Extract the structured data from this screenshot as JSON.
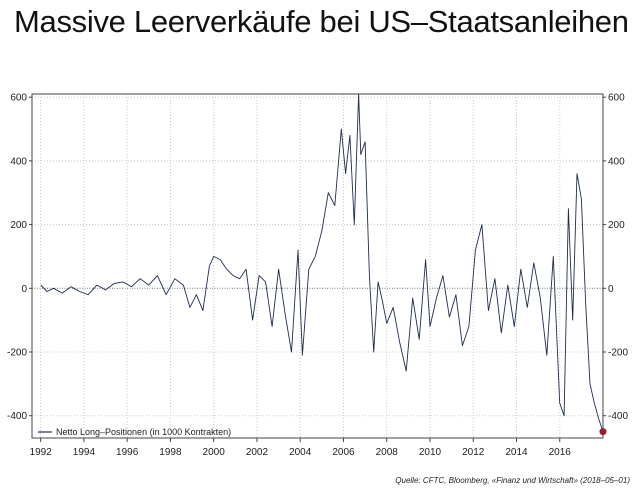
{
  "title": "Massive Leerverkäufe bei US–Staatsanleihen",
  "source": "Quelle: CFTC, Bloomberg, «Finanz und Wirtschaft» (2018–05–01)",
  "colors": {
    "series": "#1f2d4f",
    "endpoint": "#9b1c2c",
    "grid": "#c8c8c8",
    "axis": "#444444"
  },
  "chart_data": {
    "type": "line",
    "title": "Massive Leerverkäufe bei US–Staatsanleihen",
    "xlabel": "",
    "ylabel": "",
    "xlim": [
      1991.6,
      2018.0
    ],
    "ylim": [
      -470,
      610
    ],
    "xticks": [
      1992,
      1994,
      1996,
      1998,
      2000,
      2002,
      2004,
      2006,
      2008,
      2010,
      2012,
      2014,
      2016
    ],
    "yticks": [
      -400,
      -200,
      0,
      200,
      400,
      600
    ],
    "grid": true,
    "zero_line": true,
    "legend_position": "bottom-left",
    "series": [
      {
        "name": "Netto Long–Positionen (in 1000 Kontrakten)",
        "x": [
          1992.0,
          1992.3,
          1992.6,
          1993.0,
          1993.4,
          1993.8,
          1994.2,
          1994.6,
          1995.0,
          1995.4,
          1995.8,
          1996.2,
          1996.6,
          1997.0,
          1997.4,
          1997.8,
          1998.2,
          1998.6,
          1998.9,
          1999.2,
          1999.5,
          1999.8,
          2000.0,
          2000.3,
          2000.6,
          2000.9,
          2001.2,
          2001.5,
          2001.8,
          2002.1,
          2002.4,
          2002.7,
          2003.0,
          2003.3,
          2003.6,
          2003.9,
          2004.1,
          2004.4,
          2004.7,
          2005.0,
          2005.3,
          2005.6,
          2005.9,
          2006.1,
          2006.3,
          2006.5,
          2006.7,
          2006.8,
          2007.0,
          2007.2,
          2007.4,
          2007.6,
          2007.8,
          2008.0,
          2008.3,
          2008.6,
          2008.9,
          2009.2,
          2009.5,
          2009.8,
          2010.0,
          2010.3,
          2010.6,
          2010.9,
          2011.2,
          2011.5,
          2011.8,
          2012.1,
          2012.4,
          2012.7,
          2013.0,
          2013.3,
          2013.6,
          2013.9,
          2014.2,
          2014.5,
          2014.8,
          2015.1,
          2015.4,
          2015.7,
          2016.0,
          2016.2,
          2016.4,
          2016.6,
          2016.8,
          2017.0,
          2017.2,
          2017.4,
          2017.6,
          2017.8,
          2018.0
        ],
        "values": [
          10,
          -10,
          0,
          -15,
          5,
          -10,
          -20,
          10,
          -5,
          15,
          20,
          5,
          30,
          10,
          40,
          -20,
          30,
          10,
          -60,
          -20,
          -70,
          70,
          100,
          90,
          60,
          40,
          30,
          60,
          -100,
          40,
          20,
          -120,
          60,
          -80,
          -200,
          120,
          -210,
          60,
          100,
          180,
          300,
          260,
          500,
          360,
          480,
          200,
          610,
          420,
          460,
          40,
          -200,
          20,
          -40,
          -110,
          -60,
          -170,
          -260,
          -30,
          -160,
          90,
          -120,
          -30,
          40,
          -90,
          -20,
          -180,
          -120,
          120,
          200,
          -70,
          30,
          -140,
          10,
          -120,
          60,
          -60,
          80,
          -30,
          -210,
          100,
          -360,
          -400,
          250,
          -100,
          360,
          280,
          -50,
          -300,
          -360,
          -410,
          -450
        ]
      }
    ],
    "endpoint": {
      "x": 2018.0,
      "value": -450
    }
  }
}
